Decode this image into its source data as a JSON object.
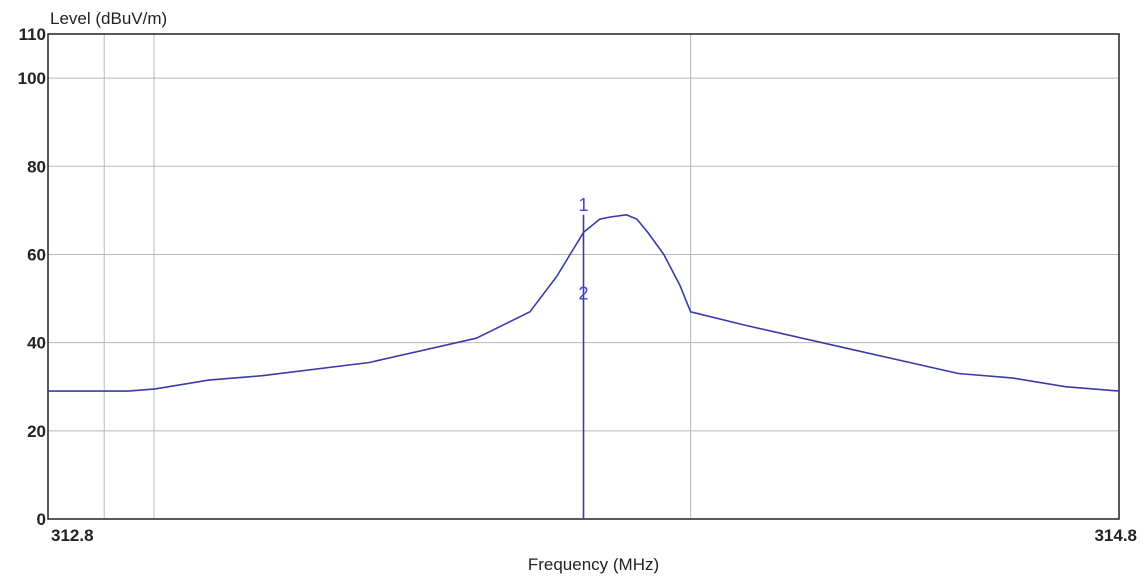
{
  "chart_data": {
    "type": "line",
    "title": "",
    "xlabel": "Frequency (MHz)",
    "ylabel": "Level (dBuV/m)",
    "xlim": [
      312.8,
      314.8
    ],
    "ylim": [
      0,
      110
    ],
    "x_tick_labels": [
      {
        "value": 312.8,
        "label": "312.8"
      },
      {
        "value": 314.8,
        "label": "314.8"
      }
    ],
    "y_ticks": [
      0,
      20,
      40,
      60,
      80,
      100,
      110
    ],
    "x_gridlines": [
      312.905,
      312.998,
      314.0
    ],
    "grid": true,
    "series": [
      {
        "color": "#3b3ba8",
        "x": [
          312.8,
          312.95,
          313.0,
          313.1,
          313.2,
          313.4,
          313.6,
          313.7,
          313.75,
          313.78,
          313.8,
          313.83,
          313.85,
          313.88,
          313.9,
          313.92,
          313.95,
          313.98,
          314.0,
          314.1,
          314.3,
          314.5,
          314.6,
          314.7,
          314.8
        ],
        "y": [
          29,
          29,
          29.5,
          31.5,
          32.5,
          35.5,
          41,
          47,
          55,
          61,
          65,
          68,
          68.5,
          69,
          68,
          65,
          60,
          53,
          47,
          44,
          38.5,
          33,
          32,
          30,
          29
        ]
      }
    ],
    "markers": [
      {
        "label": "1",
        "x": 313.8,
        "y": 69
      },
      {
        "label": "2",
        "x": 313.8,
        "y": 52
      }
    ],
    "marker_line": {
      "x": 313.8,
      "y_top": 69
    },
    "legend": "none"
  }
}
